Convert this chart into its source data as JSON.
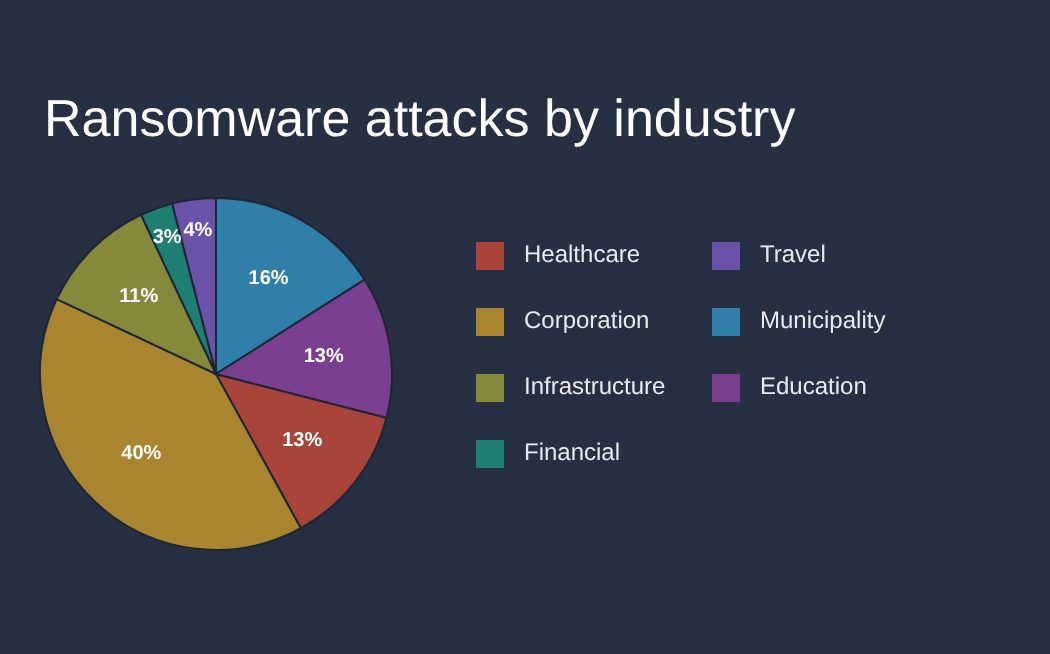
{
  "chart_data": {
    "type": "pie",
    "title": "Ransomware attacks by industry",
    "categories": [
      "Healthcare",
      "Corporation",
      "Infrastructure",
      "Financial",
      "Travel",
      "Municipality",
      "Education"
    ],
    "values": [
      13,
      40,
      11,
      3,
      4,
      16,
      13
    ],
    "colors": [
      "#a8443a",
      "#a8852e",
      "#858a3a",
      "#1f7f72",
      "#6a52a8",
      "#2f7fa8",
      "#7a3f8e"
    ],
    "value_labels": [
      "13%",
      "40%",
      "11%",
      "3%",
      "4%",
      "16%",
      "13%"
    ],
    "legend": "right"
  }
}
